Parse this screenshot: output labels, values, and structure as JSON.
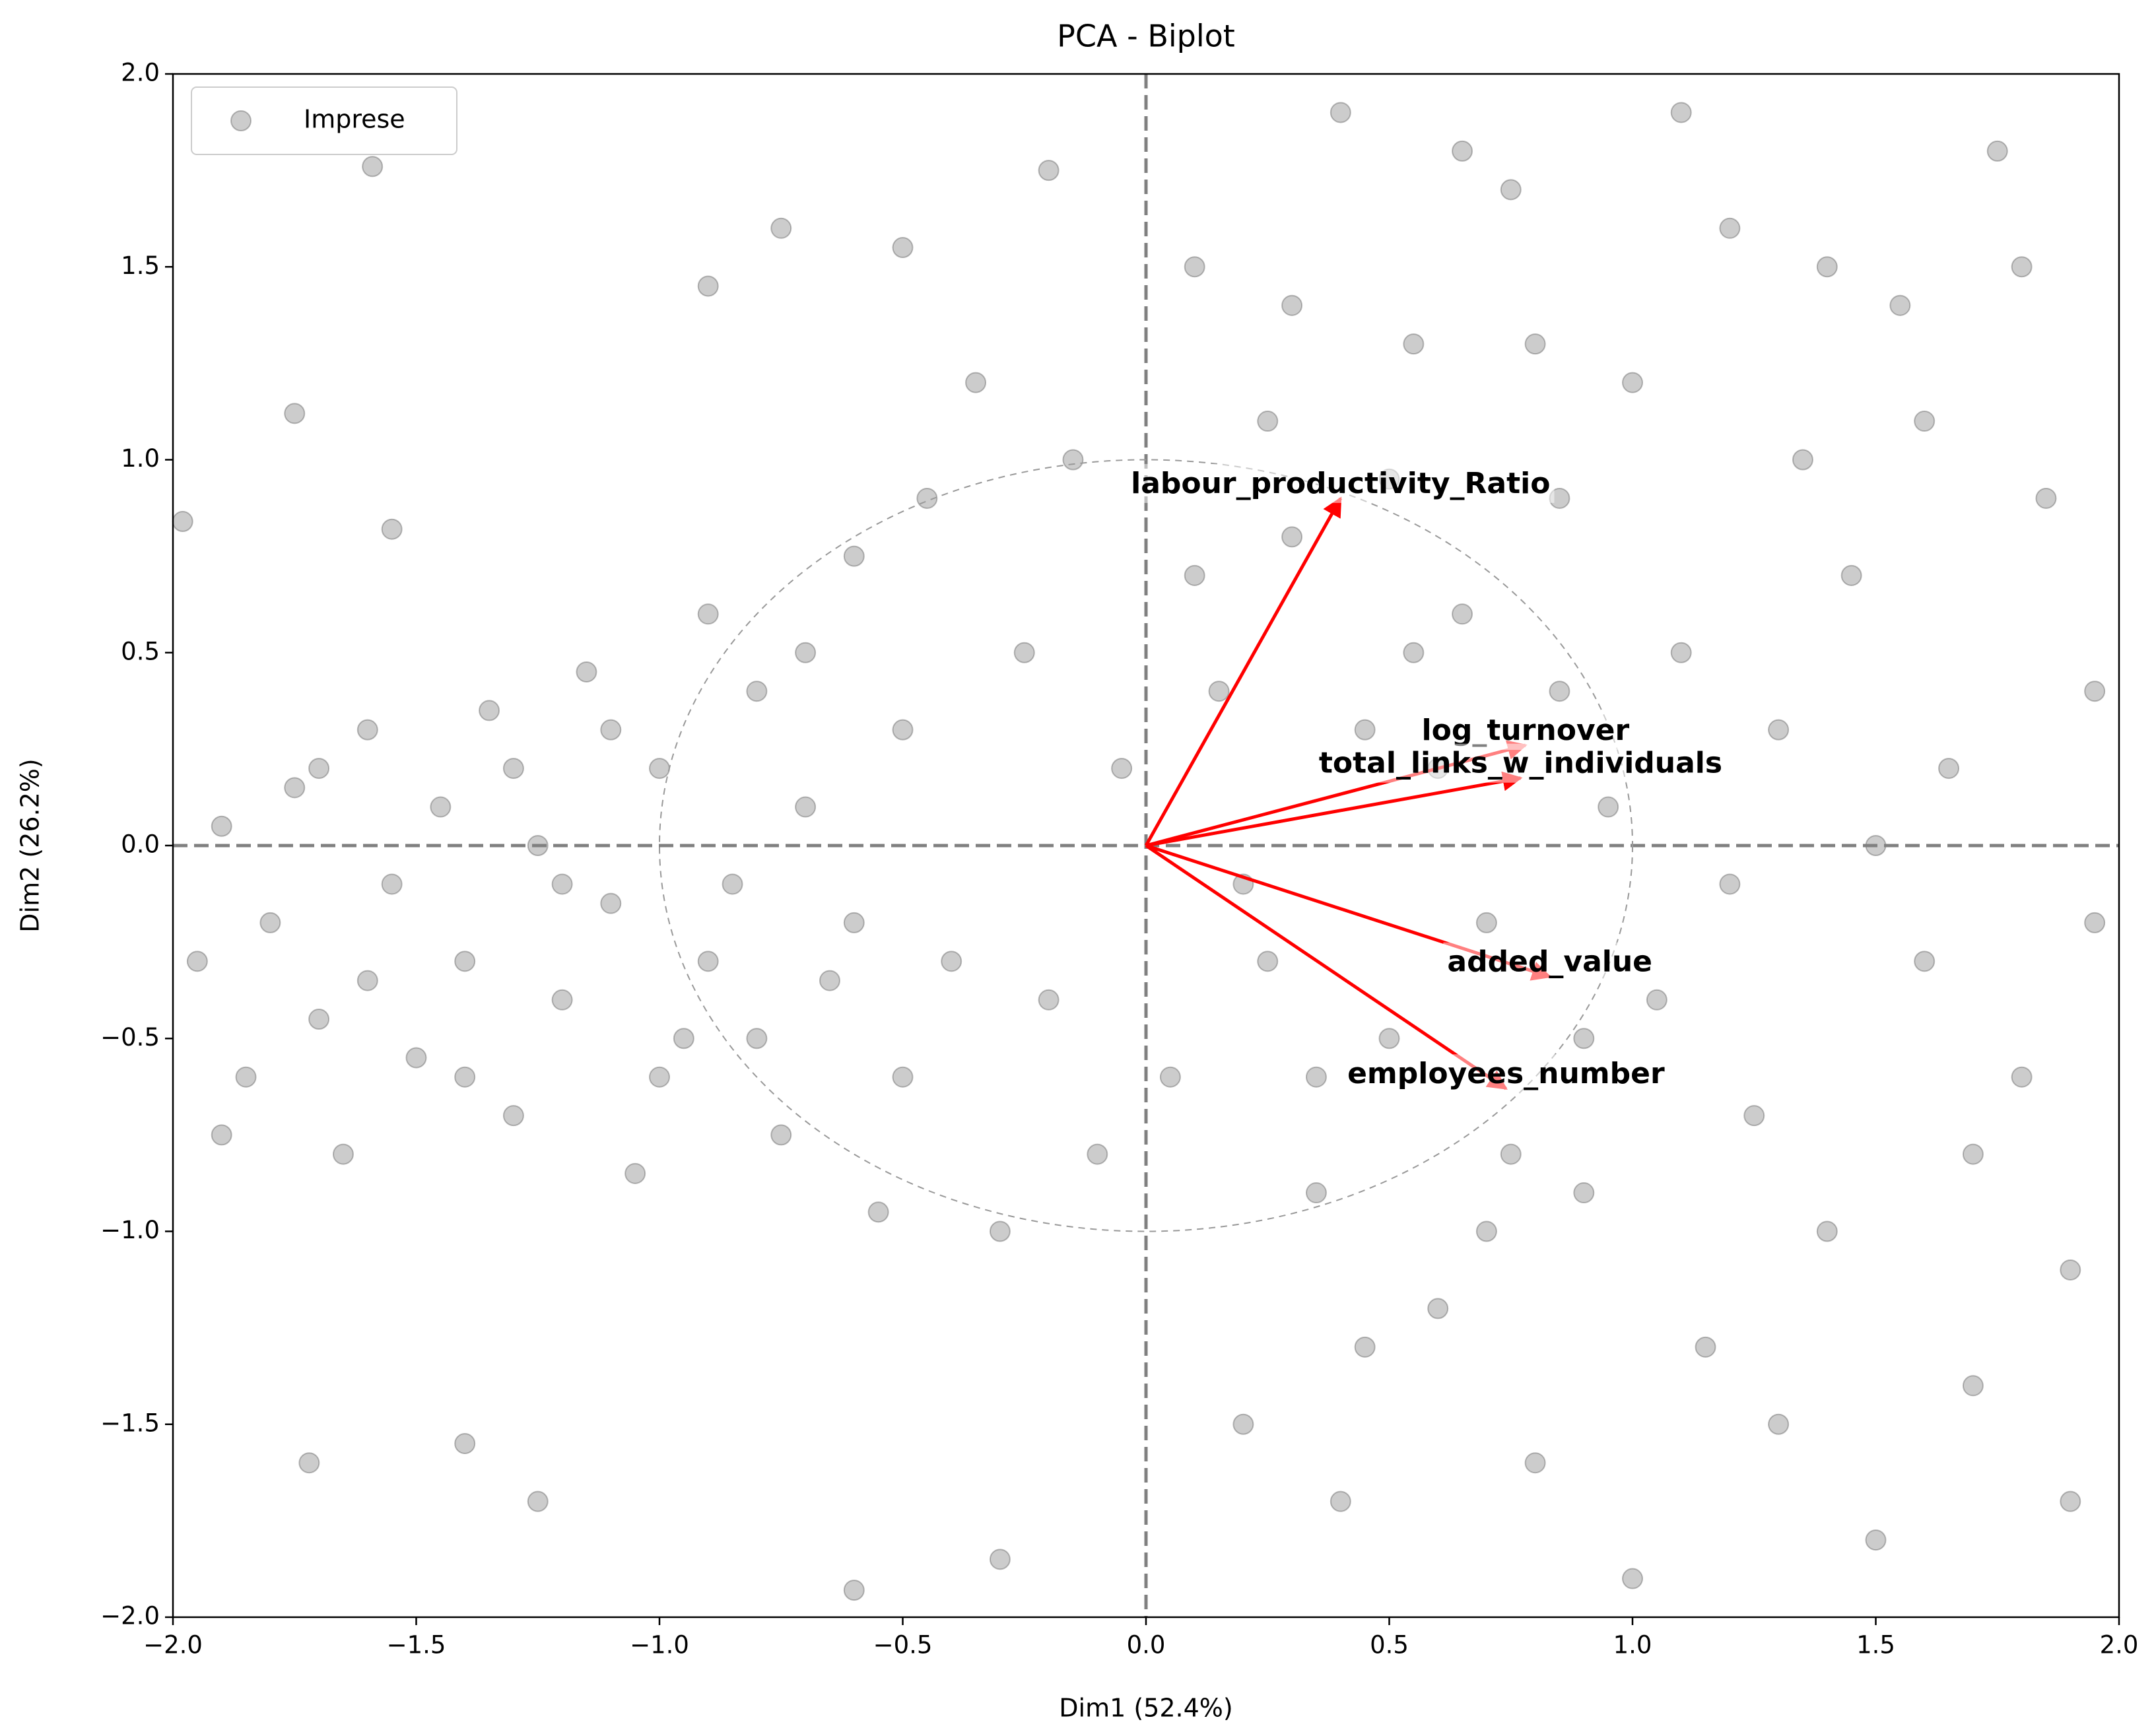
{
  "chart_data": {
    "type": "scatter",
    "title": "PCA - Biplot",
    "xlabel": "Dim1 (52.4%)",
    "ylabel": "Dim2 (26.2%)",
    "xlim": [
      -2,
      2
    ],
    "ylim": [
      -2,
      2
    ],
    "xticks": [
      {
        "value": -2,
        "label": "−2.0"
      },
      {
        "value": -1.5,
        "label": "−1.5"
      },
      {
        "value": -1,
        "label": "−1.0"
      },
      {
        "value": -0.5,
        "label": "−0.5"
      },
      {
        "value": 0,
        "label": "0.0"
      },
      0.5,
      {
        "value": 1,
        "label": "1.0"
      },
      1.5,
      {
        "value": 2,
        "label": "2.0"
      }
    ],
    "yticks": [
      {
        "value": -2,
        "label": "−2.0"
      },
      {
        "value": -1.5,
        "label": "−1.5"
      },
      {
        "value": -1,
        "label": "−1.0"
      },
      {
        "value": -0.5,
        "label": "−0.5"
      },
      {
        "value": 0,
        "label": "0.0"
      },
      0.5,
      {
        "value": 1,
        "label": "1.0"
      },
      1.5,
      {
        "value": 2,
        "label": "2.0"
      }
    ],
    "legend": "upper left",
    "series": [
      {
        "name": "Imprese",
        "color": "#000000",
        "x": [
          -1.95,
          -1.9,
          -1.85,
          -1.8,
          -1.75,
          -1.7,
          -1.65,
          -1.6,
          -1.55,
          -1.5,
          -1.45,
          -1.4,
          -1.35,
          -1.3,
          -1.25,
          -1.2,
          -1.15,
          -1.1,
          -1.05,
          -1.0,
          -0.95,
          -0.9,
          -0.85,
          -0.8,
          -0.75,
          -0.7,
          -0.65,
          -0.6,
          -0.55,
          -0.5,
          -1.9,
          -1.7,
          -1.6,
          -1.4,
          -1.3,
          -1.2,
          -1.1,
          -1.0,
          -0.9,
          -0.8,
          -0.7,
          -0.6,
          -0.5,
          -0.45,
          -0.4,
          -0.35,
          -0.3,
          -0.25,
          -0.2,
          -0.15,
          -0.1,
          -0.05,
          -1.59,
          -1.75,
          -1.98,
          -1.55,
          -1.72,
          -1.25,
          -0.9,
          -0.6,
          -0.3,
          -1.4,
          -0.75,
          -0.5,
          -0.2,
          0.1,
          0.2,
          0.3,
          0.35,
          0.4,
          0.45,
          0.5,
          0.55,
          0.6,
          0.65,
          0.7,
          0.75,
          0.8,
          0.85,
          0.9,
          0.95,
          1.0,
          1.05,
          1.1,
          1.15,
          1.2,
          1.25,
          1.3,
          1.35,
          1.4,
          1.45,
          1.5,
          1.55,
          1.6,
          1.65,
          1.7,
          1.75,
          1.8,
          1.85,
          1.9,
          1.95,
          0.15,
          0.25,
          0.3,
          0.4,
          0.5,
          0.6,
          0.7,
          0.8,
          0.9,
          1.0,
          1.1,
          1.2,
          1.3,
          1.4,
          1.5,
          1.6,
          1.7,
          1.8,
          1.9,
          1.95,
          0.05,
          0.1,
          0.2,
          0.25,
          0.35,
          0.45,
          0.55,
          0.65,
          0.75,
          0.85
        ],
        "y": [
          -0.3,
          0.05,
          -0.6,
          -0.2,
          0.15,
          -0.45,
          -0.8,
          0.3,
          -0.1,
          -0.55,
          0.1,
          -0.3,
          0.35,
          -0.7,
          0.0,
          -0.4,
          0.45,
          -0.15,
          -0.85,
          0.2,
          -0.5,
          0.6,
          -0.1,
          0.4,
          -0.75,
          0.1,
          -0.35,
          0.75,
          -0.95,
          0.3,
          -0.75,
          0.2,
          -0.35,
          -0.6,
          0.2,
          -0.1,
          0.3,
          -0.6,
          -0.3,
          -0.5,
          0.5,
          -0.2,
          -0.6,
          0.9,
          -0.3,
          1.2,
          -1.0,
          0.5,
          -0.4,
          1.0,
          -0.8,
          0.2,
          1.76,
          1.12,
          0.84,
          0.82,
          -1.6,
          -1.7,
          1.45,
          -1.93,
          -1.85,
          -1.55,
          1.6,
          1.55,
          1.75,
          1.5,
          -1.5,
          0.8,
          -0.9,
          1.9,
          0.3,
          -0.5,
          1.3,
          -1.2,
          0.6,
          -0.2,
          1.7,
          -1.6,
          0.9,
          -0.9,
          0.1,
          1.2,
          -0.4,
          0.5,
          -1.3,
          1.6,
          -0.7,
          0.3,
          1.0,
          -1.0,
          0.7,
          -1.8,
          1.4,
          -0.3,
          0.2,
          -1.4,
          1.8,
          -0.6,
          0.9,
          -1.1,
          0.4,
          0.4,
          -0.3,
          1.4,
          -1.7,
          0.95,
          0.2,
          -1.0,
          1.3,
          -0.5,
          -1.9,
          1.9,
          -0.1,
          -1.5,
          1.5,
          0.0,
          1.1,
          -0.8,
          1.5,
          -1.7,
          -0.2,
          -0.6,
          0.7,
          -0.1,
          1.1,
          -0.6,
          -1.3,
          0.5,
          1.8,
          -0.8,
          0.4
        ]
      }
    ],
    "loadings_color": "#ff0000",
    "loadings": [
      {
        "name": "labour_productivity_Ratio",
        "x": 0.4,
        "y": 0.9
      },
      {
        "name": "log_turnover",
        "x": 0.78,
        "y": 0.26
      },
      {
        "name": "total_links_w_individuals",
        "x": 0.77,
        "y": 0.175
      },
      {
        "name": "added_value",
        "x": 0.83,
        "y": -0.34
      },
      {
        "name": "employees_number",
        "x": 0.74,
        "y": -0.63
      }
    ]
  }
}
